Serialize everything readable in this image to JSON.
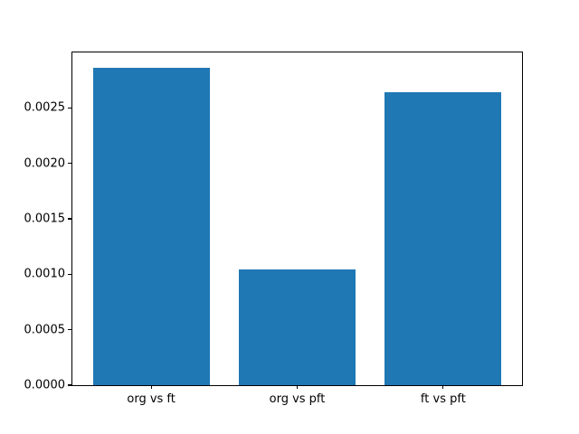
{
  "chart_data": {
    "type": "bar",
    "categories": [
      "org vs ft",
      "org vs pft",
      "ft vs pft"
    ],
    "x": [
      0,
      1,
      2
    ],
    "values": [
      0.00286,
      0.00104,
      0.00264
    ],
    "title": "",
    "xlabel": "",
    "ylabel": "",
    "xlim": [
      -0.54,
      2.54
    ],
    "ylim": [
      0,
      0.003
    ],
    "bar_width_units": 0.8,
    "bar_color": "#1f77b4",
    "axis_color": "#000000",
    "background_color": "#ffffff",
    "grid": false,
    "legend": null,
    "yticks": [
      {
        "value": 0.0,
        "label": "0.0000"
      },
      {
        "value": 0.0005,
        "label": "0.0005"
      },
      {
        "value": 0.001,
        "label": "0.0010"
      },
      {
        "value": 0.0015,
        "label": "0.0015"
      },
      {
        "value": 0.002,
        "label": "0.0020"
      },
      {
        "value": 0.0025,
        "label": "0.0025"
      }
    ]
  }
}
